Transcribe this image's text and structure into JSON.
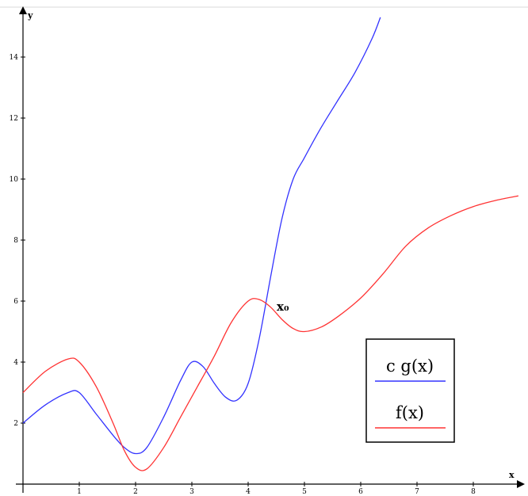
{
  "chart_data": {
    "type": "line",
    "xlabel": "x",
    "ylabel": "y",
    "xlim": [
      0,
      8.8
    ],
    "ylim": [
      0,
      15.3
    ],
    "x_ticks": [
      1,
      2,
      3,
      4,
      5,
      6,
      7,
      8
    ],
    "y_ticks": [
      2,
      4,
      6,
      8,
      10,
      12,
      14
    ],
    "grid": false,
    "legend_position": "right",
    "annotations": [
      {
        "text": "x₀",
        "x": 4.55,
        "y": 5.6
      }
    ],
    "series": [
      {
        "name": "c g(x)",
        "color": "#3333ff",
        "x": [
          0,
          0.4,
          0.8,
          1.0,
          1.3,
          1.6,
          1.8,
          2.0,
          2.2,
          2.5,
          2.8,
          3.0,
          3.2,
          3.4,
          3.6,
          3.8,
          4.0,
          4.2,
          4.4,
          4.6,
          4.8,
          5.0,
          5.3,
          5.6,
          5.9,
          6.2,
          6.35
        ],
        "y": [
          2.0,
          2.6,
          3.0,
          3.0,
          2.3,
          1.6,
          1.2,
          1.0,
          1.2,
          2.2,
          3.4,
          4.0,
          3.85,
          3.3,
          2.85,
          2.75,
          3.3,
          4.8,
          6.8,
          8.7,
          10.0,
          10.7,
          11.7,
          12.6,
          13.5,
          14.6,
          15.3
        ]
      },
      {
        "name": "f(x)",
        "color": "#ff3333",
        "x": [
          0,
          0.4,
          0.8,
          1.0,
          1.3,
          1.6,
          1.8,
          2.0,
          2.2,
          2.5,
          2.8,
          3.1,
          3.4,
          3.7,
          4.0,
          4.2,
          4.4,
          4.6,
          4.8,
          5.0,
          5.3,
          5.6,
          6.0,
          6.4,
          6.8,
          7.2,
          7.6,
          8.0,
          8.4,
          8.8
        ],
        "y": [
          3.0,
          3.7,
          4.1,
          4.0,
          3.2,
          2.0,
          1.1,
          0.55,
          0.5,
          1.2,
          2.2,
          3.2,
          4.2,
          5.3,
          6.0,
          6.05,
          5.8,
          5.4,
          5.1,
          5.0,
          5.15,
          5.5,
          6.1,
          6.9,
          7.8,
          8.4,
          8.8,
          9.1,
          9.3,
          9.45
        ]
      }
    ]
  }
}
